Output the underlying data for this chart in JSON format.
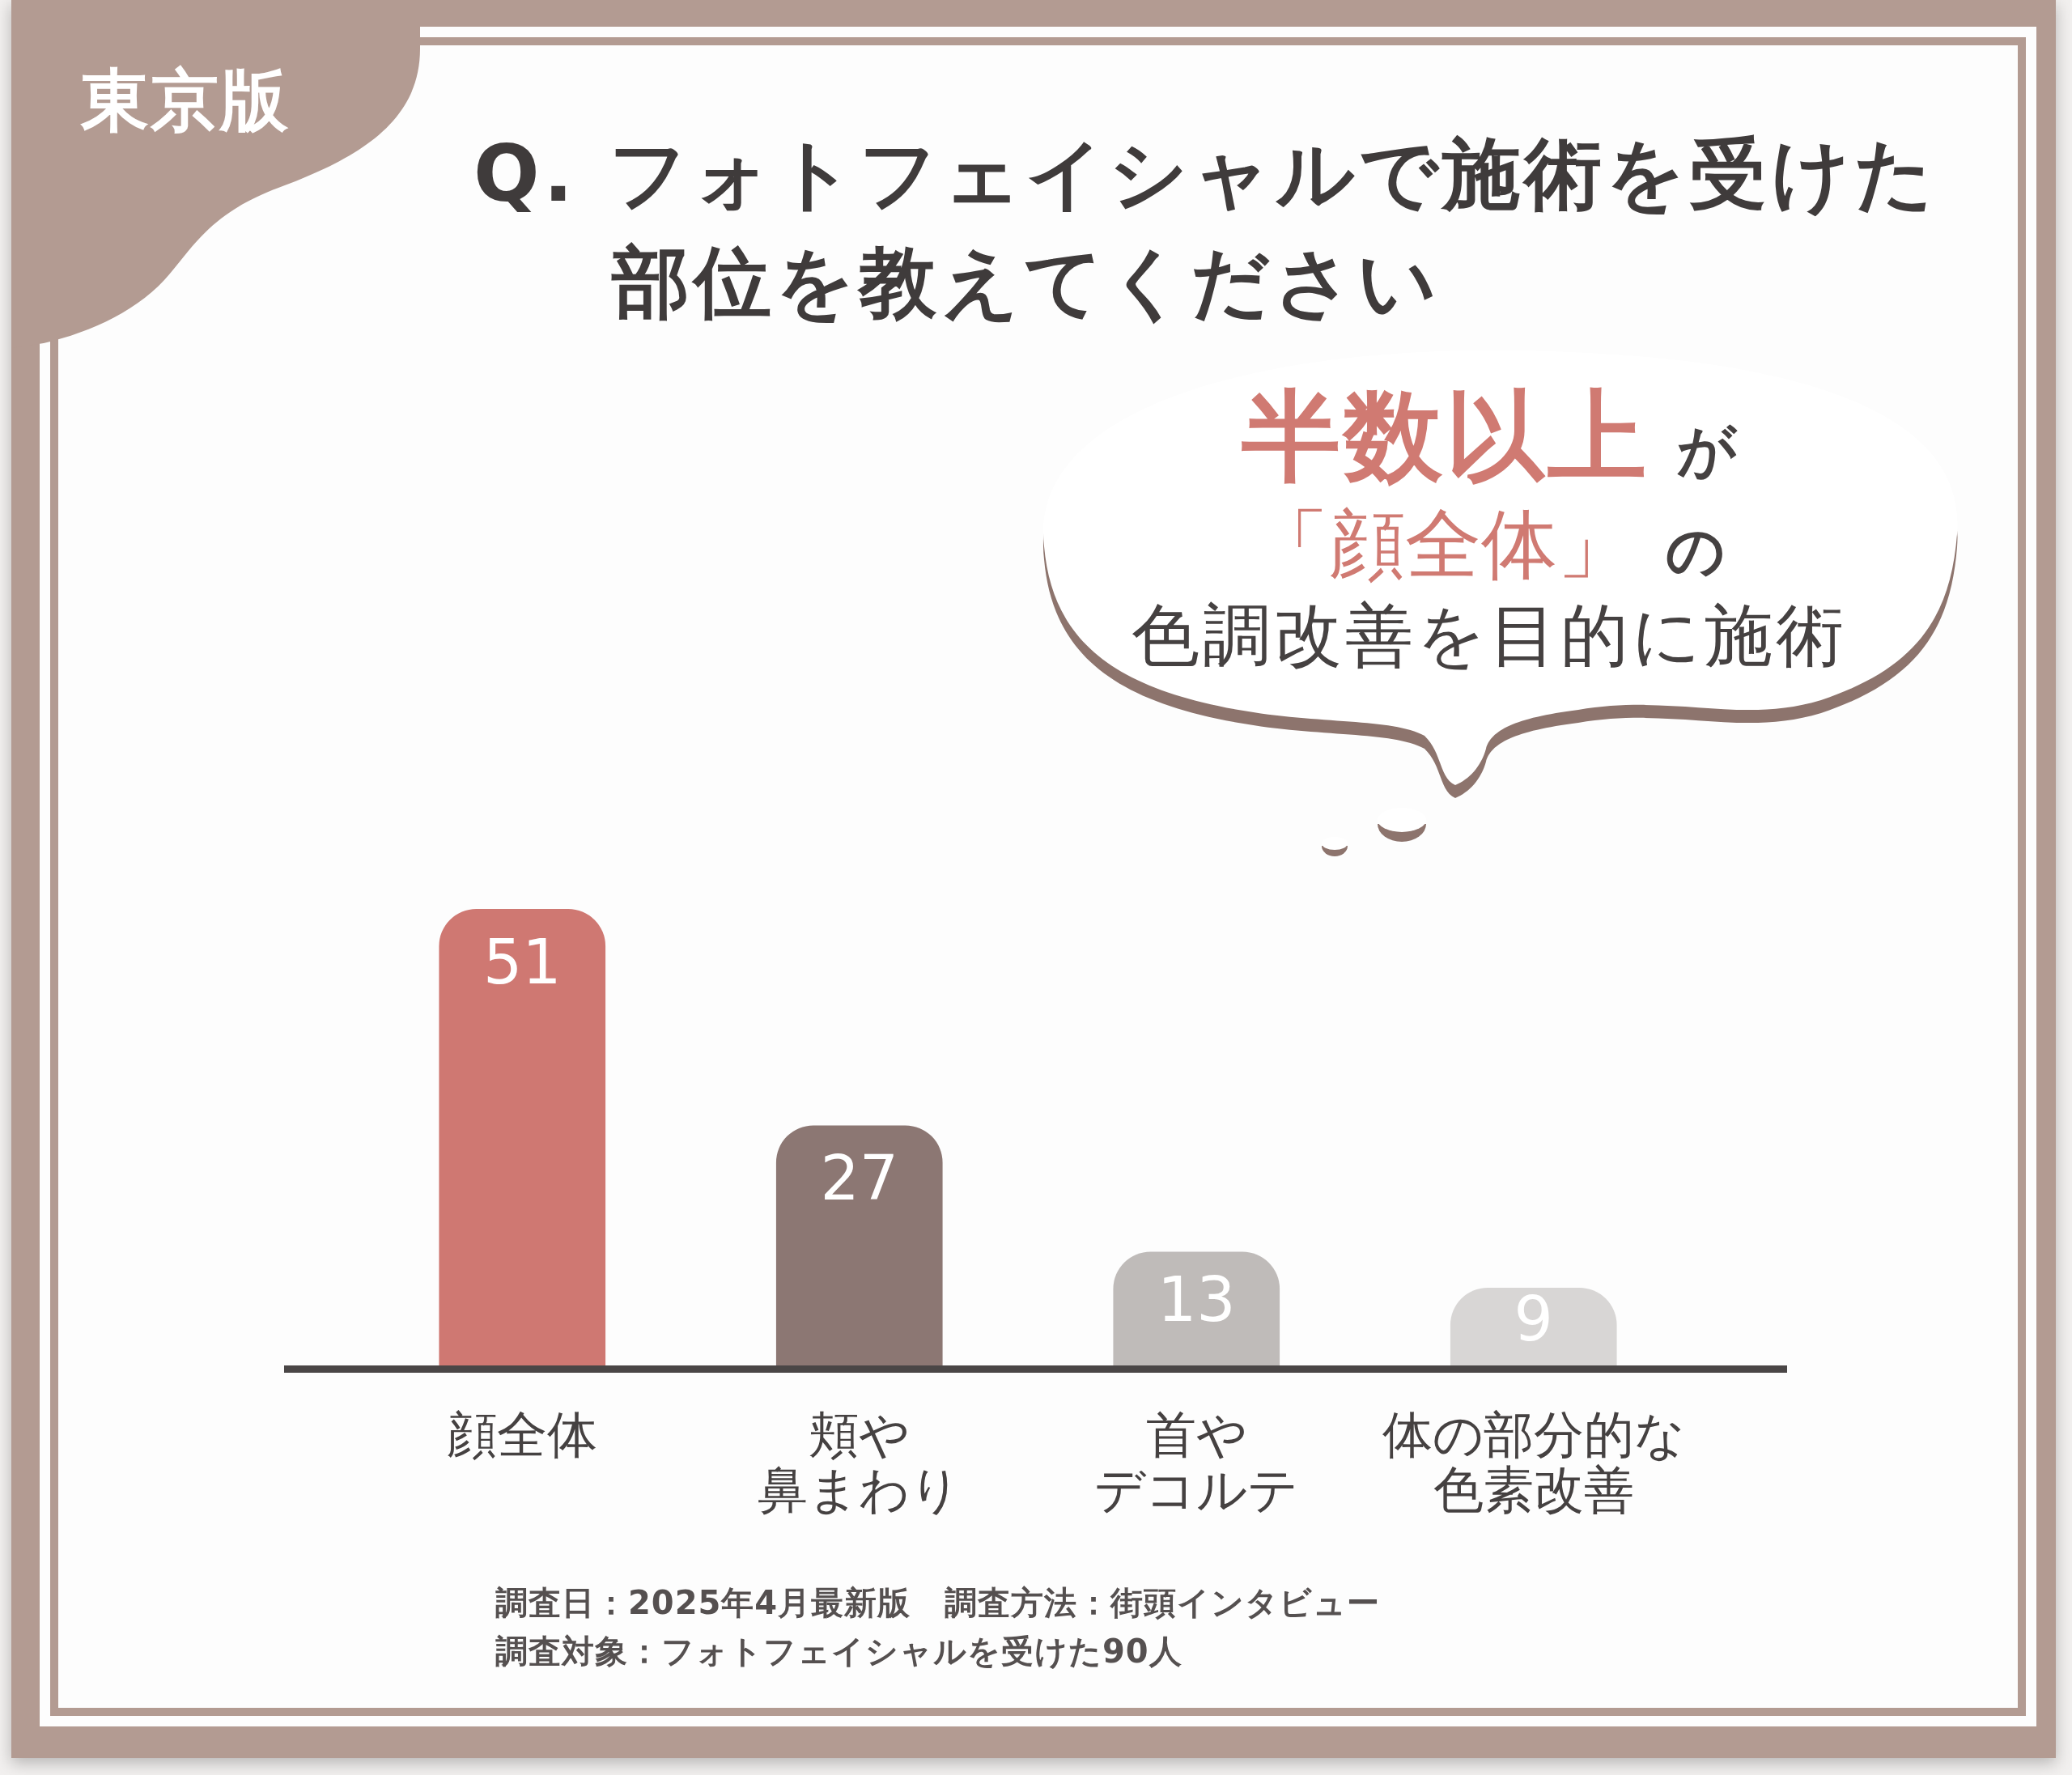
{
  "chart_data": {
    "type": "bar",
    "title": "Q. フォトフェイシャルで施術を受けた部位を教えてください",
    "categories": [
      "顔全体",
      "頬や鼻まわり",
      "首やデコルテ",
      "体の部分的な色素改善"
    ],
    "values": [
      51,
      27,
      13,
      9
    ],
    "colors": [
      "#cf7872",
      "#8c7773",
      "#bfbbb9",
      "#d8d6d5"
    ],
    "data_labels": true,
    "grid": false,
    "legend": false,
    "tick_labels": "x",
    "annotations": [
      "東京版",
      "半数以上",
      "が",
      "「顔全体」",
      "の",
      "色調改善を目的に施術",
      "調査日：2025年4月最新版",
      "調査方法：街頭インタビュー",
      "調査対象：フォトフェイシャルを受けた90人"
    ]
  }
}
